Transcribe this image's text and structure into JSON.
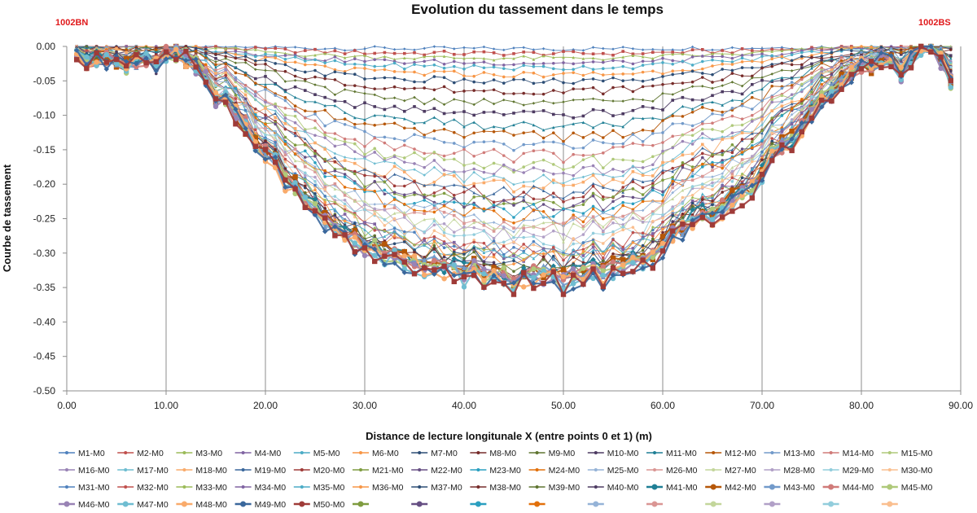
{
  "chart_data": {
    "type": "line",
    "title": "Evolution du tassement dans le temps",
    "left_marker": "1002BN",
    "right_marker": "1002BS",
    "xlabel": "Distance de lecture longitunale X (entre points 0 et 1) (m)",
    "ylabel": "Courbe de tassement",
    "xlim": [
      0,
      90
    ],
    "ylim": [
      -0.5,
      0
    ],
    "x_ticks": [
      "0.00",
      "10.00",
      "20.00",
      "30.00",
      "40.00",
      "50.00",
      "60.00",
      "70.00",
      "80.00",
      "90.00"
    ],
    "y_ticks": [
      "0.00",
      "-0.05",
      "-0.10",
      "-0.15",
      "-0.20",
      "-0.25",
      "-0.30",
      "-0.35",
      "-0.40",
      "-0.45",
      "-0.50"
    ],
    "grid": "vertical",
    "legend_position": "bottom",
    "x": [
      1,
      2,
      3,
      4,
      5,
      6,
      7,
      8,
      9,
      10,
      11,
      12,
      13,
      14,
      15,
      16,
      17,
      18,
      19,
      20,
      21,
      22,
      23,
      24,
      25,
      26,
      27,
      28,
      29,
      30,
      31,
      32,
      33,
      34,
      35,
      36,
      37,
      38,
      39,
      40,
      41,
      42,
      43,
      44,
      45,
      46,
      47,
      48,
      49,
      50,
      51,
      52,
      53,
      54,
      55,
      56,
      57,
      58,
      59,
      60,
      61,
      62,
      63,
      64,
      65,
      66,
      67,
      68,
      69,
      70,
      71,
      72,
      73,
      74,
      75,
      76,
      77,
      78,
      79,
      80,
      81,
      82,
      83,
      84,
      85,
      86,
      87,
      88,
      89
    ],
    "series_base": {
      "profile": [
        -0.01,
        -0.02,
        -0.02,
        -0.02,
        -0.02,
        -0.03,
        -0.02,
        -0.02,
        -0.03,
        -0.01,
        -0.01,
        -0.02,
        -0.03,
        -0.05,
        -0.08,
        -0.08,
        -0.1,
        -0.12,
        -0.15,
        -0.16,
        -0.17,
        -0.2,
        -0.21,
        -0.23,
        -0.24,
        -0.26,
        -0.27,
        -0.28,
        -0.29,
        -0.3,
        -0.3,
        -0.31,
        -0.31,
        -0.32,
        -0.32,
        -0.33,
        -0.32,
        -0.33,
        -0.33,
        -0.34,
        -0.33,
        -0.34,
        -0.34,
        -0.34,
        -0.35,
        -0.34,
        -0.34,
        -0.34,
        -0.34,
        -0.35,
        -0.34,
        -0.34,
        -0.33,
        -0.34,
        -0.33,
        -0.33,
        -0.32,
        -0.32,
        -0.31,
        -0.3,
        -0.28,
        -0.27,
        -0.26,
        -0.25,
        -0.25,
        -0.24,
        -0.23,
        -0.22,
        -0.21,
        -0.19,
        -0.16,
        -0.15,
        -0.14,
        -0.12,
        -0.1,
        -0.08,
        -0.07,
        -0.05,
        -0.04,
        -0.03,
        -0.03,
        -0.02,
        -0.02,
        -0.04,
        -0.02,
        0.0,
        0.0,
        -0.02,
        -0.05
      ],
      "scale": [
        0.01,
        0.03,
        0.05,
        0.07,
        0.09,
        0.12,
        0.15,
        0.19,
        0.24,
        0.29,
        0.34,
        0.38,
        0.42,
        0.46,
        0.5,
        0.53,
        0.56,
        0.59,
        0.62,
        0.64,
        0.66,
        0.68,
        0.7,
        0.72,
        0.74,
        0.76,
        0.78,
        0.8,
        0.82,
        0.84,
        0.86,
        0.87,
        0.88,
        0.89,
        0.9,
        0.91,
        0.92,
        0.93,
        0.94,
        0.95,
        0.96,
        0.96,
        0.97,
        0.97,
        0.98,
        0.98,
        0.99,
        0.99,
        1.0,
        1.0
      ]
    },
    "legend": [
      "M1-M0",
      "M2-M0",
      "M3-M0",
      "M4-M0",
      "M5-M0",
      "M6-M0",
      "M7-M0",
      "M8-M0",
      "M9-M0",
      "M10-M0",
      "M11-M0",
      "M12-M0",
      "M13-M0",
      "M14-M0",
      "M15-M0",
      "M16-M0",
      "M17-M0",
      "M18-M0",
      "M19-M0",
      "M20-M0",
      "M21-M0",
      "M22-M0",
      "M23-M0",
      "M24-M0",
      "M25-M0",
      "M26-M0",
      "M27-M0",
      "M28-M0",
      "M29-M0",
      "M30-M0",
      "M31-M0",
      "M32-M0",
      "M33-M0",
      "M34-M0",
      "M35-M0",
      "M36-M0",
      "M37-M0",
      "M38-M0",
      "M39-M0",
      "M40-M0",
      "M41-M0",
      "M42-M0",
      "M43-M0",
      "M44-M0",
      "M45-M0",
      "M46-M0",
      "M47-M0",
      "M48-M0",
      "M49-M0",
      "M50-M0",
      "",
      "",
      "",
      "",
      "",
      "",
      "",
      "",
      "",
      "",
      "",
      "",
      "",
      "",
      "",
      ""
    ],
    "colors": [
      "#4f81bd",
      "#c0504d",
      "#9bbb59",
      "#8064a2",
      "#4bacc6",
      "#f79646",
      "#2c4d75",
      "#772c2a",
      "#5f7530",
      "#4d3b62",
      "#1f7f95",
      "#b65708",
      "#729aca",
      "#d07b79",
      "#afc97a",
      "#9983b5",
      "#6fbdd1",
      "#f9ab6b",
      "#3a679c",
      "#9f3b38",
      "#7f9c40",
      "#664f83",
      "#2a9fc0",
      "#e2700b",
      "#95b3d7",
      "#da9694",
      "#c3d69b",
      "#b1a0c7",
      "#92cddc",
      "#fabf8f"
    ]
  }
}
